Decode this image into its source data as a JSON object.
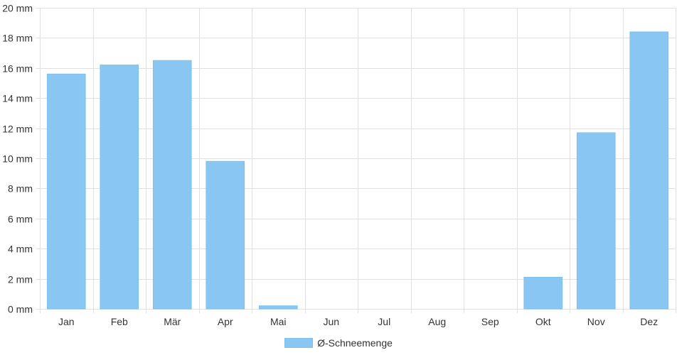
{
  "chart_data": {
    "type": "bar",
    "categories": [
      "Jan",
      "Feb",
      "Mär",
      "Apr",
      "Mai",
      "Jun",
      "Jul",
      "Aug",
      "Sep",
      "Okt",
      "Nov",
      "Dez"
    ],
    "series": [
      {
        "name": "Ø-Schneemenge",
        "values": [
          15.6,
          16.2,
          16.5,
          9.8,
          0.2,
          0,
          0,
          0,
          0,
          2.1,
          11.7,
          18.4
        ],
        "color": "#89c6f2"
      }
    ],
    "unit": "mm",
    "ylim": [
      0,
      20
    ],
    "yticks": [
      0,
      2,
      4,
      6,
      8,
      10,
      12,
      14,
      16,
      18,
      20
    ],
    "ytick_labels": [
      "0 mm",
      "2 mm",
      "4 mm",
      "6 mm",
      "8 mm",
      "10 mm",
      "12 mm",
      "14 mm",
      "16 mm",
      "18 mm",
      "20 mm"
    ],
    "grid": true,
    "legend_position": "bottom-center"
  }
}
